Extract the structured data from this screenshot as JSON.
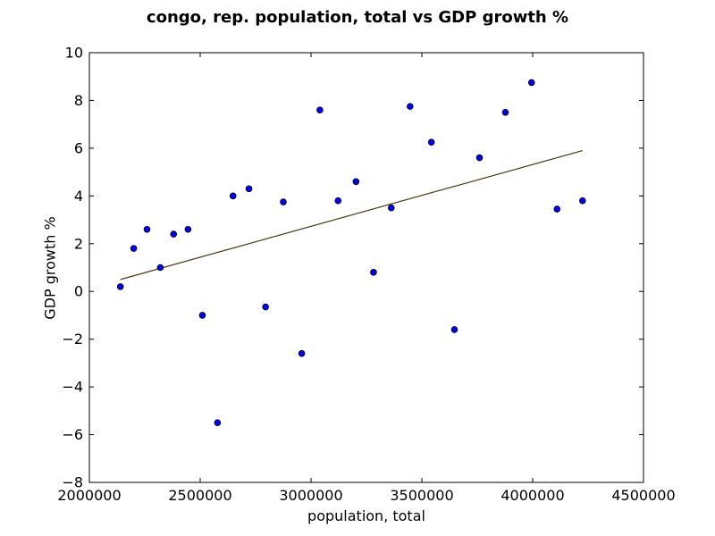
{
  "chart_data": {
    "type": "scatter",
    "title": "congo, rep. population, total vs GDP growth %",
    "xlabel": "population, total",
    "ylabel": "GDP growth %",
    "xlim": [
      2000000,
      4500000
    ],
    "ylim": [
      -8,
      10
    ],
    "xticks": [
      2000000,
      2500000,
      3000000,
      3500000,
      4000000,
      4500000
    ],
    "xtick_labels": [
      "2000000",
      "2500000",
      "3000000",
      "3500000",
      "4000000",
      "4500000"
    ],
    "yticks": [
      -8,
      -6,
      -4,
      -2,
      0,
      2,
      4,
      6,
      8,
      10
    ],
    "ytick_labels": [
      "−8",
      "−6",
      "−4",
      "−2",
      "0",
      "2",
      "4",
      "6",
      "8",
      "10"
    ],
    "grid": false,
    "marker_color": "#0000ff",
    "trend_color": "#4d3b12",
    "series": [
      {
        "points": [
          [
            2140000,
            0.2
          ],
          [
            2200000,
            1.8
          ],
          [
            2260000,
            2.6
          ],
          [
            2320000,
            1.0
          ],
          [
            2380000,
            2.4
          ],
          [
            2445000,
            2.6
          ],
          [
            2510000,
            -1.0
          ],
          [
            2578000,
            -5.5
          ],
          [
            2648000,
            4.0
          ],
          [
            2720000,
            4.3
          ],
          [
            2795000,
            -0.65
          ],
          [
            2875000,
            3.75
          ],
          [
            2958000,
            -2.6
          ],
          [
            3040000,
            7.6
          ],
          [
            3122000,
            3.8
          ],
          [
            3203000,
            4.6
          ],
          [
            3282000,
            0.8
          ],
          [
            3362000,
            3.5
          ],
          [
            3447000,
            7.75
          ],
          [
            3543000,
            6.25
          ],
          [
            3647000,
            -1.6
          ],
          [
            3760000,
            5.6
          ],
          [
            3877000,
            7.5
          ],
          [
            3995000,
            8.75
          ],
          [
            4110000,
            3.45
          ],
          [
            4225000,
            3.8
          ]
        ]
      }
    ],
    "trendline": {
      "x": [
        2140000,
        4225000
      ],
      "y": [
        0.5,
        5.9
      ]
    }
  }
}
